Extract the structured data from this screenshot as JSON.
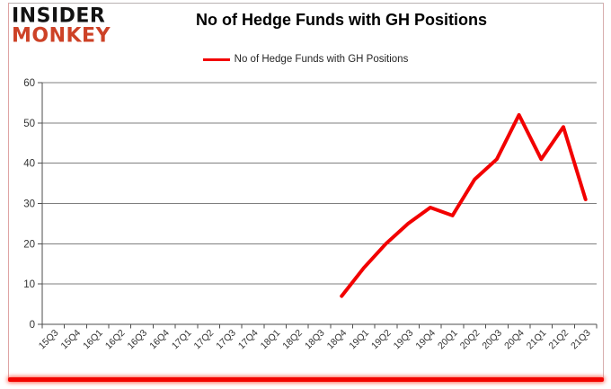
{
  "logo": {
    "line1": "INSIDER",
    "line2": "MONKEY",
    "black": "#121212",
    "red": "#cd4227"
  },
  "header": {
    "title": "No of Hedge Funds with GH Positions"
  },
  "legend": {
    "label": "No of Hedge Funds with GH Positions",
    "line_color": "#f20000"
  },
  "colors": {
    "series_red": "#f20000",
    "gridline": "#7f7f7f",
    "axis": "#4d4d4d",
    "tick_label": "#333333",
    "bottom_border_red": "#f20400"
  },
  "chart_data": {
    "type": "line",
    "title": "No of Hedge Funds with GH Positions",
    "xlabel": "",
    "ylabel": "",
    "ylim": [
      0,
      60
    ],
    "yticks": [
      0,
      10,
      20,
      30,
      40,
      50,
      60
    ],
    "grid": "horizontal",
    "legend_position": "top",
    "categories": [
      "15Q3",
      "15Q4",
      "16Q1",
      "16Q2",
      "16Q3",
      "16Q4",
      "17Q1",
      "17Q2",
      "17Q3",
      "17Q4",
      "18Q1",
      "18Q2",
      "18Q3",
      "18Q4",
      "19Q1",
      "19Q2",
      "19Q3",
      "19Q4",
      "20Q1",
      "20Q2",
      "20Q3",
      "20Q4",
      "21Q1",
      "21Q2",
      "21Q3"
    ],
    "series": [
      {
        "name": "No of Hedge Funds with GH Positions",
        "color": "#f20000",
        "values": [
          null,
          null,
          null,
          null,
          null,
          null,
          null,
          null,
          null,
          null,
          null,
          null,
          null,
          7,
          14,
          20,
          25,
          29,
          27,
          36,
          41,
          52,
          41,
          49,
          31
        ]
      }
    ]
  }
}
